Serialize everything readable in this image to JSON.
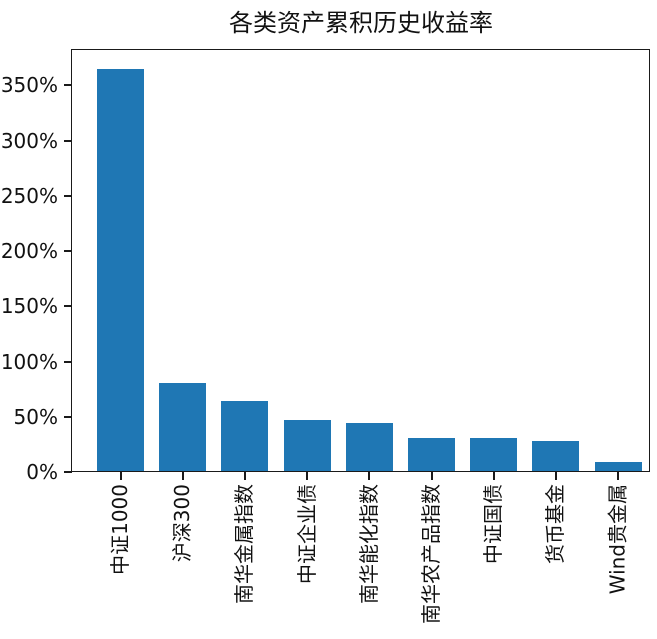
{
  "chart_data": {
    "type": "bar",
    "title": "各类资产累积历史收益率",
    "categories": [
      "中证1000",
      "沪深300",
      "南华金属指数",
      "中证企业债",
      "南华能化指数",
      "南华农产品指数",
      "中证国债",
      "货币基金",
      "Wind贵金属"
    ],
    "values": [
      365,
      81,
      64,
      47,
      44,
      31,
      31,
      28,
      9
    ],
    "value_unit": "%",
    "ytick_values": [
      0,
      50,
      100,
      150,
      200,
      250,
      300,
      350
    ],
    "ytick_labels": [
      "0%",
      "50%",
      "100%",
      "150%",
      "200%",
      "250%",
      "300%",
      "350%"
    ],
    "ylim": [
      0,
      382
    ],
    "xlabel": "",
    "ylabel": "",
    "grid": false,
    "legend_position": "none",
    "bar_color": "#1f77b4",
    "axis_color": "#1a1a1a",
    "text_color": "#111111"
  }
}
